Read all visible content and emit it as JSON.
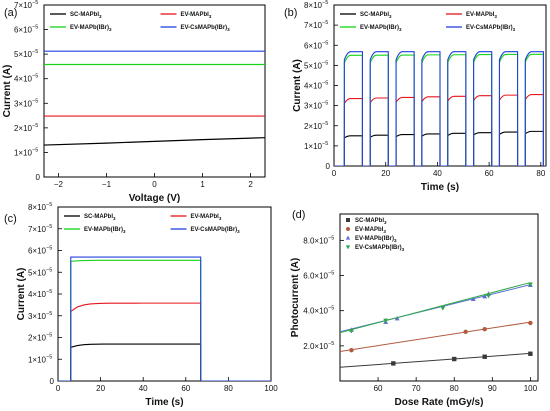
{
  "chart_data": [
    {
      "panel": "(a)",
      "type": "line",
      "xlabel": "Voltage (V)",
      "ylabel": "Current (A)",
      "xlim": [
        -2.3,
        2.3
      ],
      "ylim": [
        0,
        7e-05
      ],
      "xticks": [
        -2,
        -1,
        0,
        1,
        2
      ],
      "yticks": [
        0,
        1e-05,
        2e-05,
        3e-05,
        4e-05,
        5e-05,
        6e-05,
        7e-05
      ],
      "ytick_labels": [
        "0",
        "1×10",
        "2×10",
        "3×10",
        "4×10",
        "5×10",
        "6×10",
        "7×10"
      ],
      "ytick_exp": "−5",
      "legend": "top",
      "series": [
        {
          "name": "SC-MAPbI3",
          "color": "#000000",
          "x": [
            -2.3,
            -1,
            0,
            1,
            2.3
          ],
          "values": [
            1.3e-05,
            1.38e-05,
            1.45e-05,
            1.52e-05,
            1.6e-05
          ]
        },
        {
          "name": "EV-MAPbI3",
          "color": "#e8151b",
          "x": [
            -2.3,
            0,
            2.3
          ],
          "values": [
            2.48e-05,
            2.48e-05,
            2.48e-05
          ]
        },
        {
          "name": "EV-MAPb(IBr)3",
          "color": "#17d41a",
          "x": [
            -2.3,
            0,
            2.3
          ],
          "values": [
            4.58e-05,
            4.58e-05,
            4.58e-05
          ]
        },
        {
          "name": "EV-CsMAPb(IBr)3",
          "color": "#2440e0",
          "x": [
            -2.3,
            0,
            2.3
          ],
          "values": [
            5.12e-05,
            5.12e-05,
            5.12e-05
          ]
        }
      ]
    },
    {
      "panel": "(b)",
      "type": "line",
      "xlabel": "Time (s)",
      "ylabel": "Current (A)",
      "xlim": [
        0,
        82
      ],
      "ylim": [
        0,
        8e-05
      ],
      "xticks": [
        0,
        20,
        40,
        60,
        80
      ],
      "yticks": [
        0,
        1e-05,
        2e-05,
        3e-05,
        4e-05,
        5e-05,
        6e-05,
        7e-05,
        8e-05
      ],
      "ytick_labels": [
        "0",
        "1×10",
        "2×10",
        "3×10",
        "4×10",
        "5×10",
        "6×10",
        "7×10",
        "8×10"
      ],
      "ytick_exp": "−5",
      "legend": "top",
      "pulses": [
        [
          4,
          11
        ],
        [
          14,
          21
        ],
        [
          24,
          31
        ],
        [
          34,
          41
        ],
        [
          44,
          51
        ],
        [
          54,
          61
        ],
        [
          64,
          71
        ],
        [
          74,
          81
        ]
      ],
      "series": [
        {
          "name": "SC-MAPbI3",
          "color": "#000000",
          "on_start": 1.5e-05,
          "on_end": 1.72e-05
        },
        {
          "name": "EV-MAPbI3",
          "color": "#e8151b",
          "on_start": 3.35e-05,
          "on_end": 3.55e-05
        },
        {
          "name": "EV-MAPb(IBr)3",
          "color": "#17d41a",
          "on_start": 5.5e-05,
          "on_end": 5.55e-05
        },
        {
          "name": "EV-CsMAPb(IBr)3",
          "color": "#2440e0",
          "on_start": 5.68e-05,
          "on_end": 5.68e-05
        }
      ]
    },
    {
      "panel": "(c)",
      "type": "line",
      "xlabel": "Time (s)",
      "ylabel": "Current (A)",
      "xlim": [
        0,
        100
      ],
      "ylim": [
        0,
        8e-05
      ],
      "xticks": [
        0,
        20,
        40,
        60,
        80,
        100
      ],
      "yticks": [
        0,
        1e-05,
        2e-05,
        3e-05,
        4e-05,
        5e-05,
        6e-05,
        7e-05,
        8e-05
      ],
      "ytick_labels": [
        "0",
        "1×10",
        "2×10",
        "3×10",
        "4×10",
        "5×10",
        "6×10",
        "7×10",
        "8×10"
      ],
      "ytick_exp": "−5",
      "legend": "top",
      "on": [
        6,
        67
      ],
      "series": [
        {
          "name": "SC-MAPbI3",
          "color": "#000000",
          "on_start": 1.55e-05,
          "plateau": 1.7e-05
        },
        {
          "name": "EV-MAPbI3",
          "color": "#e8151b",
          "on_start": 3.2e-05,
          "plateau": 3.58e-05
        },
        {
          "name": "EV-MAPb(IBr)3",
          "color": "#17d41a",
          "on_start": 5.5e-05,
          "plateau": 5.55e-05
        },
        {
          "name": "EV-CsMAPb(IBr)3",
          "color": "#2440e0",
          "on_start": 5.7e-05,
          "plateau": 5.7e-05
        }
      ]
    },
    {
      "panel": "(d)",
      "type": "scatter",
      "xlabel": "Dose Rate (mGy/s)",
      "ylabel": "Photocurrent (A)",
      "xlim": [
        50,
        102
      ],
      "ylim": [
        0,
        9.5e-05
      ],
      "xticks": [
        60,
        70,
        80,
        90,
        100
      ],
      "yticks": [
        2e-05,
        4e-05,
        6e-05,
        8e-05
      ],
      "ytick_labels": [
        "2.0×10",
        "4.0×10",
        "6.0×10",
        "8.0×10"
      ],
      "ytick_exp": "−5",
      "legend": "top-left",
      "series": [
        {
          "name": "SC-MAPbI3",
          "color": "#3a3a3a",
          "marker": "square",
          "x": [
            64,
            80,
            88,
            100
          ],
          "values": [
            1e-05,
            1.25e-05,
            1.38e-05,
            1.55e-05
          ],
          "fit": [
            [
              50,
              7.8e-06
            ],
            [
              100,
              1.57e-05
            ]
          ]
        },
        {
          "name": "EV-MAPbI3",
          "color": "#b25a3e",
          "marker": "circle",
          "x": [
            53,
            83,
            88,
            100
          ],
          "values": [
            1.75e-05,
            2.8e-05,
            2.95e-05,
            3.3e-05
          ],
          "fit": [
            [
              50,
              1.68e-05
            ],
            [
              100,
              3.35e-05
            ]
          ]
        },
        {
          "name": "EV-MAPb(IBr)3",
          "color": "#5b6fd0",
          "marker": "triangle-up",
          "x": [
            53,
            62,
            65,
            85,
            88,
            89,
            100
          ],
          "values": [
            2.9e-05,
            3.35e-05,
            3.55e-05,
            4.65e-05,
            4.8e-05,
            4.95e-05,
            5.45e-05
          ],
          "fit": [
            [
              50,
              2.8e-05
            ],
            [
              100,
              5.48e-05
            ]
          ]
        },
        {
          "name": "EV-CsMAPb(IBr)3",
          "color": "#2fa84a",
          "marker": "triangle-down",
          "x": [
            53,
            62,
            77,
            89,
            100
          ],
          "values": [
            2.85e-05,
            3.45e-05,
            4.15e-05,
            4.85e-05,
            5.5e-05
          ],
          "fit": [
            [
              50,
              2.75e-05
            ],
            [
              100,
              5.6e-05
            ]
          ]
        }
      ]
    }
  ],
  "legend_labels": [
    {
      "base": "SC-MAPbI",
      "sub": "3"
    },
    {
      "base": "EV-MAPbI",
      "sub": "3"
    },
    {
      "base": "EV-MAPb(IBr)",
      "sub": "3"
    },
    {
      "base": "EV-CsMAPb(IBr)",
      "sub": "3"
    }
  ]
}
